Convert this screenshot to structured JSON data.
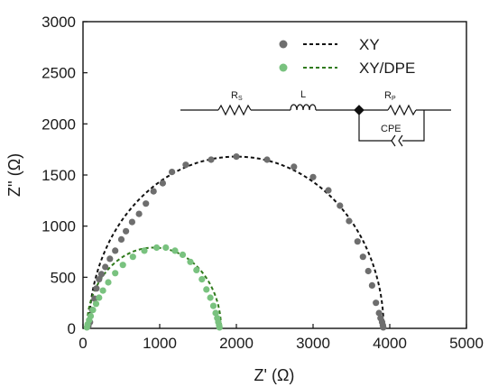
{
  "chart_data": {
    "type": "scatter",
    "xlabel": "Z' (Ω)",
    "ylabel": "Z'' (Ω)",
    "xlim": [
      0,
      5000
    ],
    "ylim": [
      0,
      3000
    ],
    "x_ticks": [
      0,
      1000,
      2000,
      3000,
      4000,
      5000
    ],
    "y_ticks": [
      0,
      500,
      1000,
      1500,
      2000,
      2500,
      3000
    ],
    "grid": false,
    "legend_position": "top-right",
    "series": [
      {
        "name": "XY",
        "color": "#6e6e6e",
        "fit_color": "#111111",
        "fit_label": "XY",
        "fit": {
          "x_start": 80,
          "x_end": 3920,
          "y_max": 1680
        },
        "points": [
          [
            70,
            25
          ],
          [
            90,
            60
          ],
          [
            120,
            180
          ],
          [
            150,
            290
          ],
          [
            175,
            390
          ],
          [
            210,
            480
          ],
          [
            240,
            530
          ],
          [
            290,
            600
          ],
          [
            350,
            680
          ],
          [
            420,
            760
          ],
          [
            500,
            870
          ],
          [
            560,
            950
          ],
          [
            640,
            1040
          ],
          [
            730,
            1120
          ],
          [
            820,
            1220
          ],
          [
            920,
            1340
          ],
          [
            1040,
            1420
          ],
          [
            1160,
            1530
          ],
          [
            1340,
            1600
          ],
          [
            1670,
            1650
          ],
          [
            2000,
            1680
          ],
          [
            2400,
            1650
          ],
          [
            2750,
            1580
          ],
          [
            3000,
            1480
          ],
          [
            3200,
            1350
          ],
          [
            3350,
            1200
          ],
          [
            3470,
            1050
          ],
          [
            3580,
            850
          ],
          [
            3650,
            700
          ],
          [
            3720,
            560
          ],
          [
            3770,
            420
          ],
          [
            3820,
            250
          ],
          [
            3860,
            150
          ],
          [
            3880,
            100
          ],
          [
            3900,
            60
          ],
          [
            3910,
            30
          ],
          [
            3915,
            10
          ]
        ]
      },
      {
        "name": "XY/DPE",
        "color": "#79c27f",
        "fit_color": "#2f7a1c",
        "fit_label": "XY/DPE",
        "fit": {
          "x_start": 50,
          "x_end": 1800,
          "y_max": 790
        },
        "points": [
          [
            50,
            10
          ],
          [
            60,
            40
          ],
          [
            80,
            80
          ],
          [
            100,
            120
          ],
          [
            130,
            180
          ],
          [
            170,
            240
          ],
          [
            210,
            300
          ],
          [
            260,
            370
          ],
          [
            330,
            450
          ],
          [
            420,
            540
          ],
          [
            520,
            620
          ],
          [
            650,
            700
          ],
          [
            800,
            760
          ],
          [
            960,
            790
          ],
          [
            1080,
            790
          ],
          [
            1200,
            760
          ],
          [
            1300,
            720
          ],
          [
            1400,
            650
          ],
          [
            1480,
            570
          ],
          [
            1550,
            480
          ],
          [
            1610,
            380
          ],
          [
            1660,
            300
          ],
          [
            1700,
            220
          ],
          [
            1730,
            150
          ],
          [
            1750,
            100
          ],
          [
            1765,
            60
          ],
          [
            1775,
            30
          ],
          [
            1780,
            10
          ]
        ]
      }
    ],
    "annotations": {
      "circuit_labels": {
        "rs": "R",
        "rs_sub": "S",
        "l": "L",
        "rp": "R",
        "rp_sub": "P",
        "cpe": "CPE"
      }
    }
  }
}
